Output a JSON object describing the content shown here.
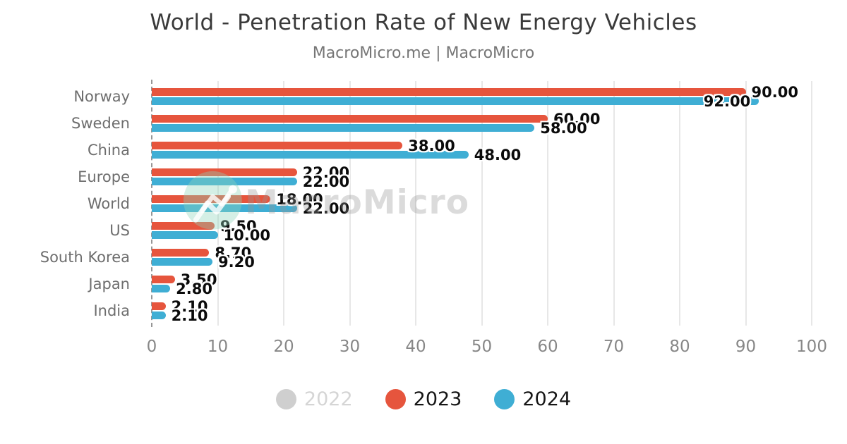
{
  "watermark": {
    "text": "MacroMicro",
    "logo": "macromicro-logo",
    "circle_color": "#8dd5ba"
  },
  "chart_data": {
    "type": "bar",
    "orientation": "horizontal",
    "title": "World - Penetration Rate of New Energy Vehicles",
    "subtitle": "MacroMicro.me | MacroMicro",
    "categories": [
      "Norway",
      "Sweden",
      "China",
      "Europe",
      "World",
      "US",
      "South Korea",
      "Japan",
      "India"
    ],
    "series": [
      {
        "name": "2022",
        "color": "#cfcfcf",
        "visible": false,
        "values": [],
        "labels": []
      },
      {
        "name": "2023",
        "color": "#e6553d",
        "visible": true,
        "values": [
          90,
          60,
          38,
          22,
          18,
          9.5,
          8.7,
          3.5,
          2.1
        ],
        "labels": [
          "90.00",
          "60.00",
          "38.00",
          "22.00",
          "18.00",
          "9.50",
          "8.70",
          "3.50",
          "2.10"
        ]
      },
      {
        "name": "2024",
        "color": "#3faed4",
        "visible": true,
        "values": [
          92,
          58,
          48,
          22,
          22,
          10,
          9.2,
          2.8,
          2.1
        ],
        "labels": [
          "92.00",
          "58.00",
          "48.00",
          "22.00",
          "22.00",
          "10.00",
          "9.20",
          "2.80",
          "2.10"
        ]
      }
    ],
    "xlabel": "",
    "ylabel": "",
    "xlim": [
      0,
      100
    ],
    "xticks": [
      0,
      10,
      20,
      30,
      40,
      50,
      60,
      70,
      80,
      90,
      100
    ],
    "grid": true,
    "legend_position": "bottom",
    "axis_color": "#969696",
    "grid_color": "#e7e7e7",
    "tick_label_color": "#878787",
    "category_label_color": "#6d6d6d",
    "value_label_color": "#0b0b0b"
  }
}
